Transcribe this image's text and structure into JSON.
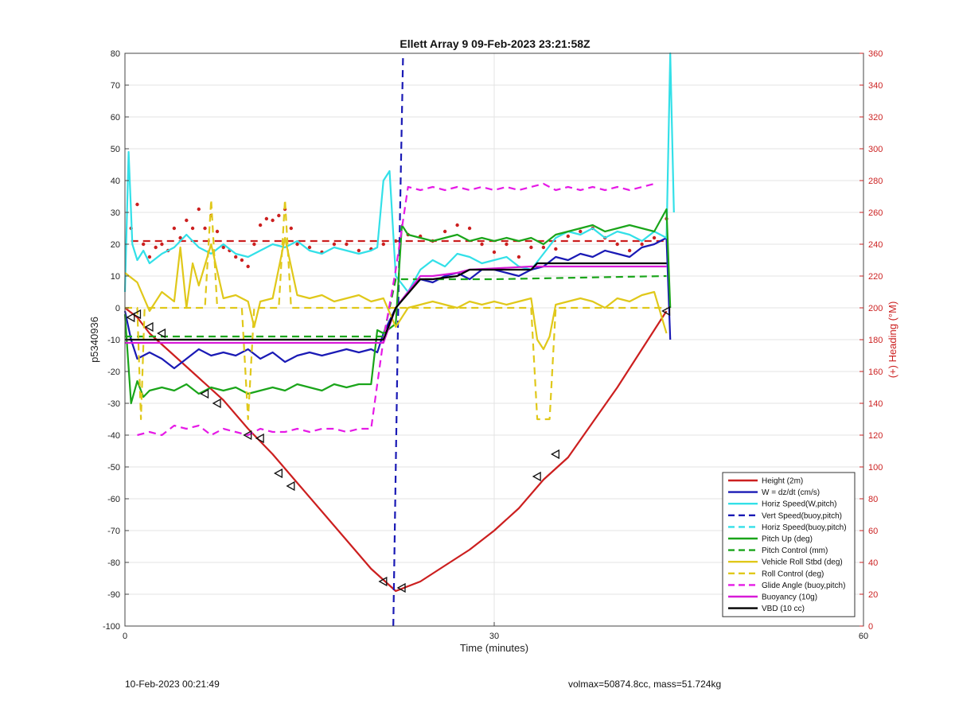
{
  "chart_data": {
    "type": "line",
    "title": "Ellett Array 9 09-Feb-2023 23:21:58Z",
    "xlabel": "Time (minutes)",
    "ylabel": "p5340936",
    "y2label": "(+) Heading (°M)",
    "xlim": [
      0,
      60
    ],
    "ylim": [
      -100,
      80
    ],
    "y2lim": [
      0,
      360
    ],
    "xticks": [
      0,
      30,
      60
    ],
    "yticks": [
      -100,
      -90,
      -80,
      -70,
      -60,
      -50,
      -40,
      -30,
      -20,
      -10,
      0,
      10,
      20,
      30,
      40,
      50,
      60,
      70,
      80
    ],
    "y2ticks": [
      0,
      20,
      40,
      60,
      80,
      100,
      120,
      140,
      160,
      180,
      200,
      220,
      240,
      260,
      280,
      300,
      320,
      340,
      360
    ],
    "grid": true,
    "legend_position": "bottom-right",
    "series": [
      {
        "name": "Height (2m)",
        "color": "#cc1f1f",
        "style": "solid",
        "x": [
          0,
          1,
          2,
          4,
          6,
          8,
          10,
          12,
          14,
          16,
          18,
          20,
          22,
          24,
          26,
          28,
          30,
          32,
          34,
          36,
          38,
          40,
          42,
          44
        ],
        "y": [
          0,
          -3,
          -8,
          -15,
          -22,
          -29,
          -38,
          -46,
          -55,
          -64,
          -73,
          -82,
          -89,
          -86,
          -81,
          -76,
          -70,
          -63,
          -54,
          -47,
          -36,
          -25,
          -13,
          -1
        ]
      },
      {
        "name": "W = dz/dt (cm/s)",
        "color": "#1a1ab5",
        "style": "solid",
        "x": [
          0,
          0.5,
          1,
          2,
          3,
          4,
          5,
          6,
          7,
          8,
          9,
          10,
          11,
          12,
          13,
          14,
          15,
          16,
          17,
          18,
          19,
          20,
          20.5,
          21,
          22,
          23,
          24,
          25,
          26,
          27,
          28,
          29,
          30,
          31,
          32,
          33,
          34,
          35,
          36,
          37,
          38,
          39,
          40,
          41,
          42,
          43,
          44,
          44.3
        ],
        "y": [
          -1,
          -10,
          -16,
          -14,
          -16,
          -19,
          -16,
          -13,
          -15,
          -14,
          -15,
          -13,
          -16,
          -14,
          -17,
          -15,
          -14,
          -15,
          -14,
          -13,
          -14,
          -13,
          -14,
          -8,
          0,
          5,
          9,
          8,
          10,
          11,
          9,
          12,
          12,
          11,
          10,
          12,
          13,
          16,
          15,
          17,
          16,
          18,
          17,
          16,
          19,
          20,
          22,
          -10
        ]
      },
      {
        "name": "Horiz Speed(W,pitch)",
        "color": "#33e0e8",
        "style": "solid",
        "x": [
          0,
          0.3,
          0.6,
          1,
          1.5,
          2,
          3,
          4,
          5,
          6,
          7,
          8,
          9,
          10,
          11,
          12,
          13,
          14,
          15,
          16,
          17,
          18,
          19,
          20,
          20.5,
          21,
          21.5,
          22,
          23,
          24,
          25,
          26,
          27,
          28,
          29,
          30,
          31,
          32,
          33,
          34,
          35,
          36,
          37,
          38,
          39,
          40,
          41,
          42,
          43,
          44,
          44.3,
          44.6
        ],
        "y": [
          5,
          49,
          20,
          15,
          18,
          14,
          17,
          19,
          23,
          19,
          17,
          20,
          17,
          16,
          18,
          20,
          19,
          21,
          18,
          17,
          19,
          18,
          17,
          18,
          19,
          40,
          43,
          10,
          5,
          12,
          15,
          13,
          17,
          16,
          14,
          15,
          16,
          13,
          12,
          17,
          22,
          24,
          23,
          25,
          22,
          24,
          23,
          21,
          24,
          22,
          80,
          30
        ]
      },
      {
        "name": "Vert Speed(buoy,pitch)",
        "color": "#1a1ab5",
        "style": "dashed",
        "x": [
          21.8,
          22.2,
          22.6
        ],
        "y": [
          -100,
          0,
          80
        ]
      },
      {
        "name": "Horiz Speed(buoy,pitch)",
        "color": "#33e0e8",
        "style": "dashed",
        "x": [],
        "y": []
      },
      {
        "name": "Pitch Up (deg)",
        "color": "#1aa51a",
        "style": "solid",
        "x": [
          0,
          0.5,
          1,
          1.5,
          2,
          3,
          4,
          5,
          6,
          7,
          8,
          9,
          10,
          11,
          12,
          13,
          14,
          15,
          16,
          17,
          18,
          19,
          20,
          20.5,
          21,
          22,
          22.5,
          23,
          24,
          25,
          26,
          27,
          28,
          29,
          30,
          31,
          32,
          33,
          34,
          35,
          36,
          37,
          38,
          39,
          40,
          41,
          42,
          43,
          44,
          44.3
        ],
        "y": [
          -2,
          -30,
          -23,
          -28,
          -26,
          -25,
          -26,
          -24,
          -27,
          -25,
          -26,
          -25,
          -27,
          -26,
          -25,
          -26,
          -24,
          -25,
          -26,
          -24,
          -25,
          -24,
          -24,
          -7,
          -8,
          -5,
          26,
          23,
          22,
          21,
          22,
          23,
          21,
          22,
          21,
          22,
          21,
          22,
          20,
          23,
          24,
          25,
          26,
          24,
          25,
          26,
          25,
          24,
          31,
          0
        ]
      },
      {
        "name": "Pitch Control (mm)",
        "color": "#1aa51a",
        "style": "dashed",
        "x": [
          0,
          1,
          21,
          22,
          30,
          44
        ],
        "y": [
          -9,
          -9,
          -9,
          9,
          9,
          10
        ]
      },
      {
        "name": "Vehicle Roll Stbd (deg)",
        "color": "#e0c81a",
        "style": "solid",
        "x": [
          0,
          1,
          2,
          3,
          4,
          4.5,
          5,
          5.5,
          6,
          7,
          8,
          9,
          10,
          10.5,
          11,
          12,
          13,
          14,
          15,
          16,
          17,
          18,
          19,
          20,
          21,
          22,
          23,
          24,
          25,
          26,
          27,
          28,
          29,
          30,
          31,
          32,
          33,
          33.5,
          34,
          34.5,
          35,
          36,
          37,
          38,
          39,
          40,
          41,
          42,
          43,
          44
        ],
        "y": [
          11,
          8,
          -1,
          5,
          2,
          19,
          0,
          14,
          7,
          20,
          3,
          4,
          2,
          -6,
          2,
          3,
          22,
          4,
          3,
          4,
          2,
          3,
          4,
          2,
          3,
          -6,
          0,
          1,
          2,
          1,
          0,
          2,
          1,
          2,
          1,
          2,
          3,
          -10,
          -13,
          -9,
          1,
          2,
          3,
          2,
          0,
          3,
          2,
          4,
          5,
          -8
        ]
      },
      {
        "name": "Roll Control (deg)",
        "color": "#e0c81a",
        "style": "dashed",
        "x": [
          0,
          1,
          1.3,
          1.6,
          2,
          6.5,
          7,
          7.5,
          8,
          9.5,
          10,
          10.5,
          11,
          12.5,
          13,
          13.5,
          14,
          20,
          21,
          22,
          33,
          33.5,
          34.5,
          35,
          44
        ],
        "y": [
          0,
          0,
          -35,
          0,
          0,
          0,
          34,
          0,
          0,
          0,
          -35,
          0,
          0,
          0,
          34,
          0,
          0,
          0,
          0,
          0,
          0,
          -35,
          -35,
          0,
          0
        ]
      },
      {
        "name": "Glide Angle (buoy,pitch)",
        "color": "#e61ae6",
        "style": "dashed",
        "x": [
          1,
          2,
          3,
          4,
          5,
          6,
          7,
          8,
          9,
          10,
          11,
          12,
          13,
          14,
          15,
          16,
          17,
          18,
          19,
          20,
          21,
          22,
          23,
          24,
          25,
          26,
          27,
          28,
          29,
          30,
          31,
          32,
          33,
          34,
          35,
          36,
          37,
          38,
          39,
          40,
          41,
          42,
          43
        ],
        "y": [
          -40,
          -39,
          -40,
          -37,
          -38,
          -37,
          -40,
          -38,
          -39,
          -40,
          -38,
          -39,
          -39,
          -38,
          -39,
          -38,
          -38,
          -39,
          -38,
          -38,
          -10,
          12,
          38,
          37,
          38,
          37,
          38,
          37,
          38,
          37,
          38,
          37,
          38,
          39,
          37,
          38,
          37,
          38,
          37,
          38,
          37,
          38,
          39
        ]
      },
      {
        "name": "Buoyancy (10g)",
        "color": "#d81ad8",
        "style": "solid",
        "x": [
          0,
          1,
          21,
          22,
          24,
          25,
          27,
          28,
          33,
          44
        ],
        "y": [
          -11,
          -11,
          -11,
          0,
          10,
          10,
          11,
          12,
          13,
          13
        ]
      },
      {
        "name": "VBD (10 cc)",
        "color": "#000000",
        "style": "solid",
        "x": [
          0,
          1,
          21,
          22,
          24,
          25,
          27,
          28,
          33,
          33.5,
          44
        ],
        "y": [
          -10,
          -10,
          -10,
          0,
          9,
          9,
          10,
          12,
          12,
          14,
          14
        ]
      }
    ],
    "heading_series": {
      "color": "#cc1f1f",
      "style": "dotted",
      "x": [
        0.5,
        1,
        1.5,
        2,
        2.5,
        3,
        3.5,
        4,
        4.5,
        5,
        5.5,
        6,
        6.5,
        7,
        7.5,
        8,
        8.5,
        9,
        9.5,
        10,
        10.5,
        11,
        11.5,
        12,
        12.5,
        13,
        13.5,
        14,
        15,
        16,
        17,
        18,
        19,
        20,
        21,
        22,
        23,
        24,
        25,
        26,
        27,
        28,
        29,
        30,
        31,
        32,
        33,
        34,
        35,
        36,
        37,
        38,
        39,
        40,
        41,
        42,
        43,
        44
      ],
      "y": [
        250,
        265,
        240,
        232,
        238,
        240,
        236,
        250,
        244,
        255,
        250,
        262,
        250,
        258,
        248,
        238,
        236,
        232,
        230,
        226,
        240,
        252,
        256,
        255,
        258,
        262,
        250,
        240,
        238,
        235,
        240,
        240,
        236,
        237,
        240,
        242,
        246,
        245,
        242,
        248,
        252,
        250,
        240,
        235,
        240,
        232,
        238,
        238,
        237,
        245,
        248,
        250,
        244,
        240,
        236,
        240,
        244,
        256
      ],
      "reference_line": 242
    },
    "markers": {
      "shape": "triangle-outline",
      "x": [
        0.5,
        1,
        2,
        3,
        6.5,
        7.5,
        10,
        11,
        12.5,
        13.5,
        21,
        22.5,
        33.5,
        35,
        44
      ],
      "y": [
        -3,
        -2,
        -6,
        -8,
        -27,
        -30,
        -40,
        -41,
        -52,
        -56,
        -86,
        -88,
        -53,
        -46,
        -1
      ]
    }
  },
  "footer": {
    "timestamp": "10-Feb-2023 00:21:49",
    "info": "volmax=50874.8cc, mass=51.724kg"
  }
}
